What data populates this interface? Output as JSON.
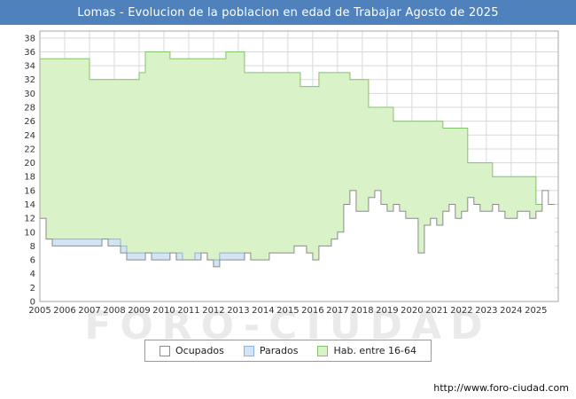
{
  "title": "Lomas - Evolucion de la poblacion en edad de Trabajar Agosto de 2025",
  "watermark": "FORO-CIUDAD",
  "footer_url": "http://www.foro-ciudad.com",
  "legend": [
    {
      "label": "Ocupados",
      "fill": "#ffffff",
      "border": "#8c8c8c"
    },
    {
      "label": "Parados",
      "fill": "#d3e5f5",
      "border": "#8fb4d9"
    },
    {
      "label": "Hab. entre 16-64",
      "fill": "#d9f2c7",
      "border": "#85c16d"
    }
  ],
  "chart_data": {
    "type": "area",
    "title": "Lomas - Evolucion de la poblacion en edad de Trabajar Agosto de 2025",
    "xlabel": "",
    "ylabel": "",
    "xlim": [
      2005,
      2025.9
    ],
    "ylim": [
      0,
      39
    ],
    "grid": true,
    "grid_color": "#d9d9d9",
    "border_color": "#a6a6a6",
    "legend_position": "bottom",
    "x_ticks": [
      2005,
      2006,
      2007,
      2008,
      2009,
      2010,
      2011,
      2012,
      2013,
      2014,
      2015,
      2016,
      2017,
      2018,
      2019,
      2020,
      2021,
      2022,
      2023,
      2024,
      2025
    ],
    "y_ticks": [
      0,
      2,
      4,
      6,
      8,
      10,
      12,
      14,
      16,
      18,
      20,
      22,
      24,
      26,
      28,
      30,
      32,
      34,
      36,
      38
    ],
    "x_start": 2005,
    "x_step": 0.25,
    "series": [
      {
        "name": "Hab. entre 16-64",
        "style": "step-area",
        "fill": "#d9f2c7",
        "stroke": "#85c16d",
        "values": [
          35,
          35,
          35,
          35,
          35,
          35,
          35,
          35,
          32,
          32,
          32,
          32,
          32,
          32,
          32,
          32,
          33,
          36,
          36,
          36,
          36,
          35,
          35,
          35,
          35,
          35,
          35,
          35,
          35,
          35,
          36,
          36,
          36,
          33,
          33,
          33,
          33,
          33,
          33,
          33,
          33,
          33,
          31,
          31,
          31,
          33,
          33,
          33,
          33,
          33,
          32,
          32,
          32,
          28,
          28,
          28,
          28,
          26,
          26,
          26,
          26,
          26,
          26,
          26,
          26,
          25,
          25,
          25,
          25,
          20,
          20,
          20,
          20,
          18,
          18,
          18,
          18,
          18,
          18,
          18,
          14,
          14,
          14
        ]
      },
      {
        "name": "Parados",
        "style": "step-area",
        "fill": "#d3e5f5",
        "stroke": "#8fb4d9",
        "values": [
          10,
          9,
          9,
          9,
          9,
          9,
          9,
          9,
          9,
          9,
          9,
          9,
          9,
          8,
          7,
          7,
          7,
          7,
          7,
          7,
          7,
          6,
          7,
          6,
          6,
          7,
          6,
          6,
          6,
          7,
          7,
          7,
          7,
          6,
          5,
          4,
          3,
          3,
          2,
          2,
          2,
          2,
          2,
          2,
          2,
          2,
          1,
          1,
          1,
          1,
          1,
          1,
          1,
          1,
          1,
          1,
          1,
          1,
          1,
          1,
          1,
          2,
          2,
          1,
          1,
          1,
          1,
          1,
          1,
          1,
          1,
          1,
          1,
          1,
          1,
          1,
          1,
          1,
          1,
          1,
          1,
          1,
          1
        ]
      },
      {
        "name": "Ocupados",
        "style": "step-area",
        "fill": "#ffffff",
        "stroke": "#8c8c8c",
        "values": [
          12,
          9,
          8,
          8,
          8,
          8,
          8,
          8,
          8,
          8,
          9,
          8,
          8,
          7,
          6,
          6,
          6,
          7,
          6,
          6,
          6,
          7,
          6,
          6,
          6,
          6,
          7,
          6,
          5,
          6,
          6,
          6,
          6,
          7,
          6,
          6,
          6,
          7,
          7,
          7,
          7,
          8,
          8,
          7,
          6,
          8,
          8,
          9,
          10,
          14,
          16,
          13,
          13,
          15,
          16,
          14,
          13,
          14,
          13,
          12,
          12,
          7,
          11,
          12,
          11,
          13,
          14,
          12,
          13,
          15,
          14,
          13,
          13,
          14,
          13,
          12,
          12,
          13,
          13,
          12,
          13,
          16,
          14
        ]
      }
    ]
  }
}
